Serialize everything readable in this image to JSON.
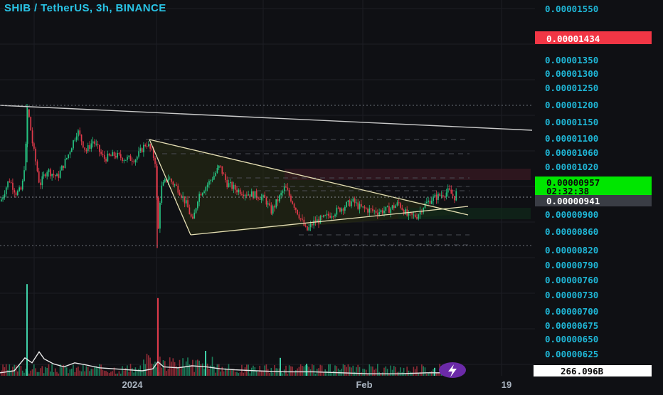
{
  "header": {
    "title": "SHIB / TetherUS, 3h, BINANCE"
  },
  "chart_data": {
    "type": "candlestick",
    "symbol": "SHIB / TetherUS",
    "interval": "3h",
    "exchange": "BINANCE",
    "y_axis": {
      "ticks": [
        "0.00001550",
        "0.00001450",
        "0.00001350",
        "0.00001300",
        "0.00001250",
        "0.00001200",
        "0.00001150",
        "0.00001100",
        "0.00001060",
        "0.00001020",
        "0.00000900",
        "0.00000860",
        "0.00000820",
        "0.00000790",
        "0.00000760",
        "0.00000730",
        "0.00000700",
        "0.00000675",
        "0.00000650",
        "0.00000625"
      ],
      "partial_tick": "0.00000601",
      "scale": "log"
    },
    "x_axis": {
      "ticks": [
        "2024",
        "Feb",
        "19"
      ]
    },
    "price_tags": [
      {
        "value": "0.00001434",
        "bg": "#f23645",
        "fg": "#ffffff"
      },
      {
        "value": "0.00000957",
        "bg": "#00e600",
        "fg": "#0a0a0a"
      },
      {
        "value": "02:32:38",
        "bg": "#00e600",
        "fg": "#0a0a0a"
      },
      {
        "value": "0.00000941",
        "bg": "#3a3d45",
        "fg": "#ffffff"
      }
    ],
    "volume_tag": {
      "value": "266.096B",
      "bg": "#ffffff",
      "fg": "#0a0a0a"
    },
    "price_path": [
      [
        0,
        9.3e-06
      ],
      [
        12,
        9.85e-06
      ],
      [
        22,
        9.5e-06
      ],
      [
        30,
        9.6e-06
      ],
      [
        35,
        1.05e-05
      ],
      [
        38,
        1.19e-05
      ],
      [
        45,
        1.08e-05
      ],
      [
        55,
        9.7e-06
      ],
      [
        65,
        1.01e-05
      ],
      [
        80,
        9.9e-06
      ],
      [
        95,
        1.05e-05
      ],
      [
        108,
        1.12e-05
      ],
      [
        120,
        1.06e-05
      ],
      [
        130,
        1.09e-05
      ],
      [
        145,
        1.04e-05
      ],
      [
        160,
        1.05e-05
      ],
      [
        175,
        1.04e-05
      ],
      [
        190,
        1.04e-05
      ],
      [
        205,
        1.085e-05
      ],
      [
        212,
        1.06e-05
      ],
      [
        218,
        1.03e-05
      ],
      [
        221,
        8.4e-06
      ],
      [
        225,
        9.6e-06
      ],
      [
        235,
        9.9e-06
      ],
      [
        250,
        9.6e-06
      ],
      [
        262,
        9.2e-06
      ],
      [
        270,
        8.8e-06
      ],
      [
        278,
        9.45e-06
      ],
      [
        290,
        9.7e-06
      ],
      [
        300,
        9.95e-06
      ],
      [
        308,
        1.02e-05
      ],
      [
        318,
        9.75e-06
      ],
      [
        330,
        9.6e-06
      ],
      [
        345,
        9.5e-06
      ],
      [
        360,
        9.45e-06
      ],
      [
        372,
        9.35e-06
      ],
      [
        380,
        9.05e-06
      ],
      [
        392,
        9.4e-06
      ],
      [
        400,
        9.65e-06
      ],
      [
        410,
        9.3e-06
      ],
      [
        420,
        8.95e-06
      ],
      [
        430,
        8.6e-06
      ],
      [
        440,
        8.8e-06
      ],
      [
        455,
        8.9e-06
      ],
      [
        470,
        9.05e-06
      ],
      [
        485,
        9.2e-06
      ],
      [
        495,
        9.3e-06
      ],
      [
        505,
        9.15e-06
      ],
      [
        515,
        9.1e-06
      ],
      [
        530,
        9.05e-06
      ],
      [
        545,
        9.1e-06
      ],
      [
        560,
        9.25e-06
      ],
      [
        572,
        8.95e-06
      ],
      [
        585,
        8.95e-06
      ],
      [
        595,
        9.2e-06
      ],
      [
        605,
        9.35e-06
      ],
      [
        618,
        9.45e-06
      ],
      [
        630,
        9.55e-06
      ],
      [
        638,
        9.4e-06
      ],
      [
        642,
        9.57e-06
      ]
    ],
    "volume_line": [
      [
        0,
        0.03
      ],
      [
        20,
        0.05
      ],
      [
        35,
        0.18
      ],
      [
        45,
        0.13
      ],
      [
        55,
        0.24
      ],
      [
        62,
        0.17
      ],
      [
        75,
        0.12
      ],
      [
        90,
        0.09
      ],
      [
        105,
        0.13
      ],
      [
        120,
        0.11
      ],
      [
        140,
        0.08
      ],
      [
        160,
        0.07
      ],
      [
        180,
        0.06
      ],
      [
        200,
        0.05
      ],
      [
        215,
        0.07
      ],
      [
        222,
        0.14
      ],
      [
        230,
        0.09
      ],
      [
        250,
        0.08
      ],
      [
        270,
        0.1
      ],
      [
        290,
        0.09
      ],
      [
        310,
        0.07
      ],
      [
        330,
        0.06
      ],
      [
        360,
        0.05
      ],
      [
        400,
        0.04
      ],
      [
        440,
        0.04
      ],
      [
        480,
        0.03
      ],
      [
        520,
        0.02
      ],
      [
        560,
        0.02
      ],
      [
        600,
        0.03
      ],
      [
        642,
        0.03
      ]
    ],
    "volume_spikes": [
      [
        37,
        0.92
      ],
      [
        221,
        0.78
      ],
      [
        288,
        0.25
      ],
      [
        393,
        0.18
      ],
      [
        430,
        0.12
      ],
      [
        610,
        0.08
      ]
    ]
  }
}
